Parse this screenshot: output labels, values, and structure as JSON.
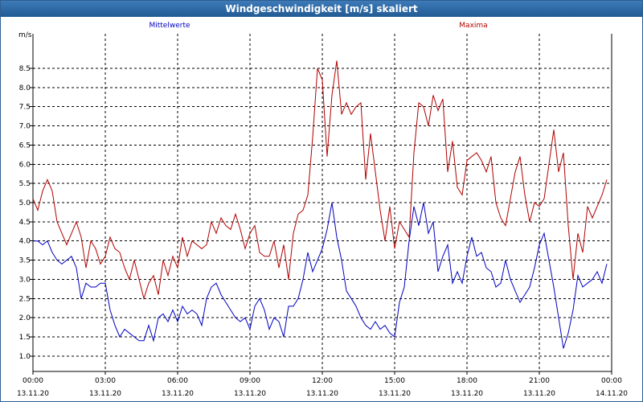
{
  "window": {
    "title": "Windgeschwindigkeit [m/s] skaliert"
  },
  "colors": {
    "mean": "#0000c0",
    "max": "#b00000",
    "axis": "#000000",
    "grid": "#000000",
    "title_bar": "#225b94"
  },
  "chart_data": {
    "type": "line",
    "title": "Windgeschwindigkeit [m/s] skaliert",
    "ylabel": "m/s",
    "xlabel": "",
    "ylim": [
      0.6,
      9.4
    ],
    "xlim": [
      0,
      24
    ],
    "yticks": [
      1.0,
      1.5,
      2.0,
      2.5,
      3.0,
      3.5,
      4.0,
      4.5,
      5.0,
      5.5,
      6.0,
      6.5,
      7.0,
      7.5,
      8.0,
      8.5
    ],
    "ytick_labels": [
      "1.0",
      "1.5",
      "2.0",
      "2.5",
      "3.0",
      "3.5",
      "4.0",
      "4.5",
      "5.0",
      "5.5",
      "6.0",
      "6.5",
      "7.0",
      "7.5",
      "8.0",
      "8.5"
    ],
    "xticks": [
      0,
      3,
      6,
      9,
      12,
      15,
      18,
      21,
      24
    ],
    "xtick_time_labels": [
      "00:00",
      "03:00",
      "06:00",
      "09:00",
      "12:00",
      "15:00",
      "18:00",
      "21:00",
      "00:00"
    ],
    "xtick_date_labels": [
      "13.11.20",
      "13.11.20",
      "13.11.20",
      "13.11.20",
      "13.11.20",
      "13.11.20",
      "13.11.20",
      "13.11.20",
      "14.11.20"
    ],
    "grid": true,
    "legend": [
      "Mittelwerte",
      "Maxima"
    ],
    "x_unit": "hours since 13.11.20 00:00",
    "series": [
      {
        "name": "Mittelwerte",
        "color": "#0000c0",
        "x": [
          0,
          0.2,
          0.4,
          0.6,
          0.8,
          1.0,
          1.2,
          1.4,
          1.6,
          1.8,
          2.0,
          2.2,
          2.4,
          2.6,
          2.8,
          3.0,
          3.2,
          3.4,
          3.6,
          3.8,
          4.0,
          4.2,
          4.4,
          4.6,
          4.8,
          5.0,
          5.2,
          5.4,
          5.6,
          5.8,
          6.0,
          6.2,
          6.4,
          6.6,
          6.8,
          7.0,
          7.2,
          7.4,
          7.6,
          7.8,
          8.0,
          8.2,
          8.4,
          8.6,
          8.8,
          9.0,
          9.2,
          9.4,
          9.6,
          9.8,
          10.0,
          10.2,
          10.4,
          10.6,
          10.8,
          11.0,
          11.2,
          11.4,
          11.6,
          11.8,
          12.0,
          12.2,
          12.4,
          12.6,
          12.8,
          13.0,
          13.2,
          13.4,
          13.6,
          13.8,
          14.0,
          14.2,
          14.4,
          14.6,
          14.8,
          15.0,
          15.2,
          15.4,
          15.6,
          15.8,
          16.0,
          16.2,
          16.4,
          16.6,
          16.8,
          17.0,
          17.2,
          17.4,
          17.6,
          17.8,
          18.0,
          18.2,
          18.4,
          18.6,
          18.8,
          19.0,
          19.2,
          19.4,
          19.6,
          19.8,
          20.0,
          20.2,
          20.4,
          20.6,
          20.8,
          21.0,
          21.2,
          21.4,
          21.6,
          21.8,
          22.0,
          22.2,
          22.4,
          22.6,
          22.8,
          23.0,
          23.2,
          23.4,
          23.6,
          23.8
        ],
        "y": [
          4.0,
          4.0,
          3.9,
          4.0,
          3.7,
          3.5,
          3.4,
          3.5,
          3.6,
          3.3,
          2.5,
          2.9,
          2.8,
          2.8,
          2.9,
          2.9,
          2.2,
          1.8,
          1.5,
          1.7,
          1.6,
          1.5,
          1.4,
          1.4,
          1.8,
          1.4,
          2.0,
          2.1,
          1.9,
          2.2,
          1.9,
          2.3,
          2.1,
          2.2,
          2.1,
          1.8,
          2.5,
          2.8,
          2.9,
          2.6,
          2.4,
          2.2,
          2.0,
          1.9,
          2.0,
          1.7,
          2.3,
          2.5,
          2.2,
          1.7,
          2.0,
          1.9,
          1.5,
          2.3,
          2.3,
          2.5,
          3.0,
          3.7,
          3.2,
          3.5,
          3.8,
          4.3,
          5.0,
          4.1,
          3.5,
          2.7,
          2.5,
          2.3,
          2.0,
          1.8,
          1.7,
          1.9,
          1.7,
          1.8,
          1.6,
          1.5,
          2.4,
          2.8,
          4.0,
          4.9,
          4.4,
          5.0,
          4.2,
          4.5,
          3.2,
          3.6,
          3.9,
          2.9,
          3.2,
          2.9,
          3.6,
          4.1,
          3.6,
          3.7,
          3.3,
          3.2,
          2.8,
          2.9,
          3.5,
          3.0,
          2.7,
          2.4,
          2.6,
          2.8,
          3.3,
          3.9,
          4.2,
          3.5,
          2.8,
          2.0,
          1.2,
          1.6,
          2.2,
          3.1,
          2.8,
          2.9,
          3.0,
          3.2,
          2.9,
          3.4
        ]
      },
      {
        "name": "Maxima",
        "color": "#b00000",
        "x": [
          0,
          0.2,
          0.4,
          0.6,
          0.8,
          1.0,
          1.2,
          1.4,
          1.6,
          1.8,
          2.0,
          2.2,
          2.4,
          2.6,
          2.8,
          3.0,
          3.2,
          3.4,
          3.6,
          3.8,
          4.0,
          4.2,
          4.4,
          4.6,
          4.8,
          5.0,
          5.2,
          5.4,
          5.6,
          5.8,
          6.0,
          6.2,
          6.4,
          6.6,
          6.8,
          7.0,
          7.2,
          7.4,
          7.6,
          7.8,
          8.0,
          8.2,
          8.4,
          8.6,
          8.8,
          9.0,
          9.2,
          9.4,
          9.6,
          9.8,
          10.0,
          10.2,
          10.4,
          10.6,
          10.8,
          11.0,
          11.2,
          11.4,
          11.6,
          11.8,
          12.0,
          12.2,
          12.4,
          12.6,
          12.8,
          13.0,
          13.2,
          13.4,
          13.6,
          13.8,
          14.0,
          14.2,
          14.4,
          14.6,
          14.8,
          15.0,
          15.2,
          15.4,
          15.6,
          15.8,
          16.0,
          16.2,
          16.4,
          16.6,
          16.8,
          17.0,
          17.2,
          17.4,
          17.6,
          17.8,
          18.0,
          18.2,
          18.4,
          18.6,
          18.8,
          19.0,
          19.2,
          19.4,
          19.6,
          19.8,
          20.0,
          20.2,
          20.4,
          20.6,
          20.8,
          21.0,
          21.2,
          21.4,
          21.6,
          21.8,
          22.0,
          22.2,
          22.4,
          22.6,
          22.8,
          23.0,
          23.2,
          23.4,
          23.6,
          23.8
        ],
        "y": [
          5.1,
          4.8,
          5.3,
          5.6,
          5.3,
          4.5,
          4.2,
          3.9,
          4.2,
          4.5,
          4.1,
          3.3,
          4.0,
          3.8,
          3.4,
          3.6,
          4.1,
          3.8,
          3.7,
          3.3,
          3.0,
          3.5,
          3.0,
          2.5,
          2.9,
          3.1,
          2.6,
          3.5,
          3.1,
          3.6,
          3.3,
          4.1,
          3.6,
          4.0,
          3.9,
          3.8,
          3.9,
          4.5,
          4.2,
          4.6,
          4.4,
          4.3,
          4.7,
          4.3,
          3.8,
          4.2,
          4.4,
          3.7,
          3.6,
          3.6,
          4.0,
          3.3,
          3.9,
          3.0,
          4.2,
          4.7,
          4.8,
          5.2,
          6.7,
          8.5,
          8.2,
          6.2,
          7.8,
          8.7,
          7.3,
          7.6,
          7.3,
          7.5,
          7.6,
          5.6,
          6.8,
          5.8,
          4.8,
          4.0,
          4.9,
          3.8,
          4.5,
          4.3,
          4.1,
          6.3,
          7.6,
          7.5,
          7.0,
          7.8,
          7.4,
          7.7,
          5.8,
          6.6,
          5.4,
          5.2,
          6.1,
          6.2,
          6.3,
          6.1,
          5.8,
          6.2,
          5.0,
          4.6,
          4.4,
          5.1,
          5.8,
          6.2,
          5.2,
          4.5,
          5.0,
          4.9,
          5.1,
          6.0,
          6.9,
          5.8,
          6.3,
          4.4,
          3.0,
          4.2,
          3.7,
          4.9,
          4.6,
          4.9,
          5.2,
          5.6
        ]
      }
    ]
  }
}
